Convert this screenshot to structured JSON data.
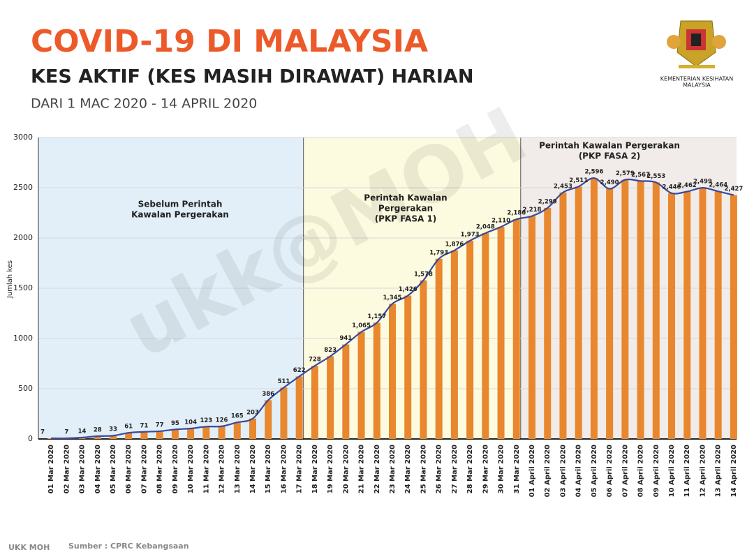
{
  "header": {
    "title": "COVID-19 DI MALAYSIA",
    "subtitle": "KES AKTIF (KES MASIH DIRAWAT) HARIAN",
    "period": "DARI 1 MAC 2020 - 14 APRIL 2020",
    "agency": [
      "KEMENTERIAN KESIHATAN",
      "MALAYSIA"
    ]
  },
  "footer": {
    "credit": "UKK MOH",
    "source": "Sumber : CPRC Kebangsaan"
  },
  "watermark": "ukk@MOH",
  "chart_data": {
    "type": "bar",
    "y_label": "Jumlah kes",
    "categories": [
      "01 Mar 2020",
      "02 Mar 2020",
      "03 Mar 2020",
      "04 Mar 2020",
      "05 Mar 2020",
      "06 Mar 2020",
      "07 Mar 2020",
      "08 Mar 2020",
      "09 Mar 2020",
      "10 Mar 2020",
      "11 Mar 2020",
      "12 Mar 2020",
      "13 Mar 2020",
      "14 Mar 2020",
      "15 Mar 2020",
      "16 Mar 2020",
      "17 Mar 2020",
      "18 Mar 2020",
      "19 Mar 2020",
      "20 Mar 2020",
      "21 Mar 2020",
      "22 Mar 2020",
      "23 Mar 2020",
      "24 Mar 2020",
      "25 Mar 2020",
      "26 Mar 2020",
      "27 Mar 2020",
      "28 Mar 2020",
      "29 Mar 2020",
      "30 Mar 2020",
      "31 Mar 2020",
      "01 April 2020",
      "02 April 2020",
      "03 April 2020",
      "04 April 2020",
      "05 April 2020",
      "06 April 2020",
      "07 April 2020",
      "08 April 2020",
      "09 April 2020",
      "10 April 2020",
      "11 April 2020",
      "12 April 2020",
      "13 April 2020",
      "14 April 2020"
    ],
    "values": [
      7,
      7,
      14,
      28,
      33,
      61,
      71,
      77,
      95,
      104,
      123,
      126,
      165,
      203,
      386,
      511,
      622,
      728,
      823,
      941,
      1065,
      1157,
      1345,
      1426,
      1578,
      1793,
      1876,
      1973,
      2048,
      2110,
      2186,
      2218,
      2299,
      2453,
      2511,
      2596,
      2490,
      2579,
      2567,
      2553,
      2446,
      2462,
      2499,
      2464,
      2427
    ],
    "value_labels": [
      "7",
      "7",
      "14",
      "28",
      "33",
      "61",
      "71",
      "77",
      "95",
      "104",
      "123",
      "126",
      "165",
      "203",
      "386",
      "511",
      "622",
      "728",
      "823",
      "941",
      "1,065",
      "1,157",
      "1,345",
      "1,426",
      "1,578",
      "1,793",
      "1,876",
      "1,973",
      "2,048",
      "2,110",
      "2,186",
      "2,218",
      "2,299",
      "2,453",
      "2,511",
      "2,596",
      "2,490",
      "2,579",
      "2,567",
      "2,553",
      "2,446",
      "2,462",
      "2,499",
      "2,464",
      "2,427"
    ],
    "color": "#e8872e",
    "line_color": "#3b4a9a",
    "ylim": [
      0,
      3000
    ],
    "yticks": [
      0,
      500,
      1000,
      1500,
      2000,
      2500,
      3000
    ],
    "grid": true,
    "phases": [
      {
        "label": [
          "Sebelum Perintah",
          "Kawalan Pergerakan"
        ],
        "color": "#e2eff8"
      },
      {
        "label": [
          "Perintah Kawalan",
          "Pergerakan",
          "(PKP FASA 1)"
        ],
        "color": "#fcfadf"
      },
      {
        "label": [
          "Perintah Kawalan Pergerakan",
          "(PKP FASA 2)"
        ],
        "color": "#f1ece9"
      }
    ]
  }
}
